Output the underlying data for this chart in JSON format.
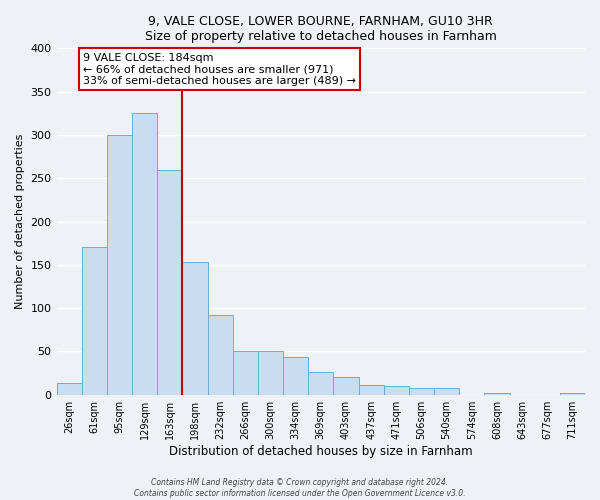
{
  "title1": "9, VALE CLOSE, LOWER BOURNE, FARNHAM, GU10 3HR",
  "title2": "Size of property relative to detached houses in Farnham",
  "xlabel": "Distribution of detached houses by size in Farnham",
  "ylabel": "Number of detached properties",
  "bar_labels": [
    "26sqm",
    "61sqm",
    "95sqm",
    "129sqm",
    "163sqm",
    "198sqm",
    "232sqm",
    "266sqm",
    "300sqm",
    "334sqm",
    "369sqm",
    "403sqm",
    "437sqm",
    "471sqm",
    "506sqm",
    "540sqm",
    "574sqm",
    "608sqm",
    "643sqm",
    "677sqm",
    "711sqm"
  ],
  "bar_values": [
    13,
    170,
    300,
    325,
    260,
    153,
    92,
    50,
    50,
    43,
    26,
    20,
    11,
    10,
    8,
    8,
    0,
    2,
    0,
    0,
    2
  ],
  "bar_color": "#c8ddef",
  "bar_edge_color": "#6aadd5",
  "ylim": [
    0,
    400
  ],
  "yticks": [
    0,
    50,
    100,
    150,
    200,
    250,
    300,
    350,
    400
  ],
  "property_line_color": "#cc0000",
  "annotation_text": "9 VALE CLOSE: 184sqm\n← 66% of detached houses are smaller (971)\n33% of semi-detached houses are larger (489) →",
  "annotation_box_color": "#ffffff",
  "annotation_box_edge": "#cc0000",
  "footer1": "Contains HM Land Registry data © Crown copyright and database right 2024.",
  "footer2": "Contains public sector information licensed under the Open Government Licence v3.0.",
  "background_color": "#eef2f7",
  "grid_color": "#ffffff"
}
